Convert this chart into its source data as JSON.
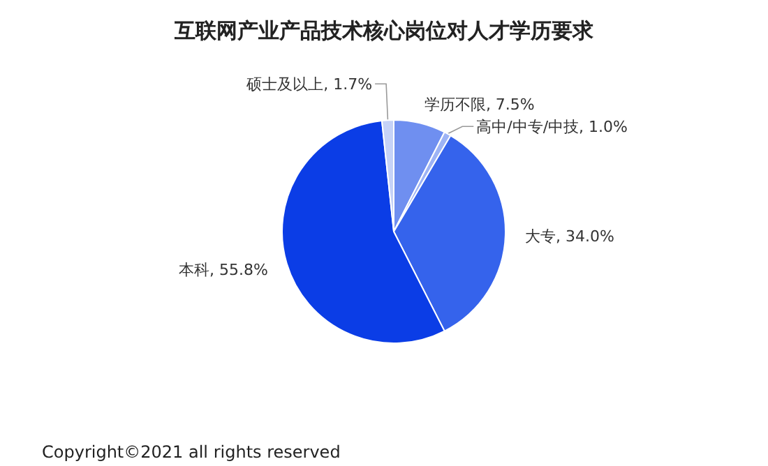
{
  "chart_data": {
    "type": "pie",
    "title": "互联网产业产品技术核心岗位对人才学历要求",
    "categories": [
      "学历不限",
      "高中/中专/中技",
      "大专",
      "本科",
      "硕士及以上"
    ],
    "value_labels": [
      "7.5%",
      "1.0%",
      "34.0%",
      "55.8%",
      "1.7%"
    ],
    "values": [
      7.5,
      1.0,
      34.0,
      55.8,
      1.7
    ],
    "colors": [
      "#6f8ff0",
      "#9db3f5",
      "#3563ec",
      "#0b3de6",
      "#c5d2f7"
    ],
    "annotations": [
      "Copyright©2021 all rights reserved"
    ]
  }
}
